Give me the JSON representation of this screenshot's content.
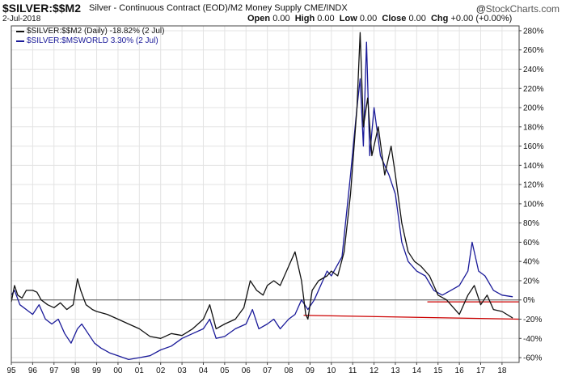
{
  "header": {
    "title": "$SILVER:$$M2",
    "subtitle": "Silver - Continuous Contract (EOD)/M2 Money Supply CME/INDX",
    "date": "2-Jul-2018",
    "open_label": "Open",
    "open_value": "0.00",
    "high_label": "High",
    "high_value": "0.00",
    "low_label": "Low",
    "low_value": "0.00",
    "close_label": "Close",
    "close_value": "0.00",
    "chg_label": "Chg",
    "chg_value": "+0.00 (+0.00%)",
    "brand": "StockCharts.com",
    "brand_mark": "@"
  },
  "chart_data": {
    "type": "line",
    "xlim": [
      1995.0,
      2018.8
    ],
    "ylim": [
      -65,
      285
    ],
    "yticks": [
      -60,
      -40,
      -20,
      0,
      20,
      40,
      60,
      80,
      100,
      120,
      140,
      160,
      180,
      200,
      220,
      240,
      260,
      280
    ],
    "ytick_labels": [
      "-60%",
      "-40%",
      "-20%",
      "0%",
      "20%",
      "40%",
      "60%",
      "80%",
      "100%",
      "120%",
      "140%",
      "160%",
      "180%",
      "200%",
      "220%",
      "240%",
      "260%",
      "280%"
    ],
    "xticks": [
      1995,
      1996,
      1997,
      1998,
      1999,
      2000,
      2001,
      2002,
      2003,
      2004,
      2005,
      2006,
      2007,
      2008,
      2009,
      2010,
      2011,
      2012,
      2013,
      2014,
      2015,
      2016,
      2017,
      2018
    ],
    "xtick_labels": [
      "95",
      "96",
      "97",
      "98",
      "99",
      "00",
      "01",
      "02",
      "03",
      "04",
      "05",
      "06",
      "07",
      "08",
      "09",
      "10",
      "11",
      "12",
      "13",
      "14",
      "15",
      "16",
      "17",
      "18"
    ],
    "grid": true,
    "series": [
      {
        "name": "$SILVER:$$M2 (Daily) -18.82% (2 Jul)",
        "color": "#111111",
        "points": [
          [
            1995.0,
            -2
          ],
          [
            1995.15,
            15
          ],
          [
            1995.3,
            5
          ],
          [
            1995.5,
            2
          ],
          [
            1995.7,
            10
          ],
          [
            1996.0,
            10
          ],
          [
            1996.2,
            8
          ],
          [
            1996.4,
            0
          ],
          [
            1996.7,
            -5
          ],
          [
            1997.0,
            -8
          ],
          [
            1997.3,
            -3
          ],
          [
            1997.6,
            -10
          ],
          [
            1997.9,
            -5
          ],
          [
            1998.1,
            22
          ],
          [
            1998.25,
            10
          ],
          [
            1998.5,
            -5
          ],
          [
            1998.8,
            -10
          ],
          [
            1999.0,
            -12
          ],
          [
            1999.5,
            -15
          ],
          [
            2000.0,
            -20
          ],
          [
            2000.5,
            -25
          ],
          [
            2001.0,
            -30
          ],
          [
            2001.5,
            -38
          ],
          [
            2002.0,
            -40
          ],
          [
            2002.5,
            -35
          ],
          [
            2003.0,
            -37
          ],
          [
            2003.5,
            -30
          ],
          [
            2004.0,
            -20
          ],
          [
            2004.3,
            -5
          ],
          [
            2004.6,
            -30
          ],
          [
            2005.0,
            -25
          ],
          [
            2005.5,
            -20
          ],
          [
            2005.9,
            -8
          ],
          [
            2006.2,
            20
          ],
          [
            2006.5,
            10
          ],
          [
            2006.8,
            5
          ],
          [
            2007.0,
            15
          ],
          [
            2007.3,
            20
          ],
          [
            2007.6,
            15
          ],
          [
            2008.0,
            35
          ],
          [
            2008.3,
            50
          ],
          [
            2008.6,
            20
          ],
          [
            2008.8,
            -15
          ],
          [
            2008.9,
            -20
          ],
          [
            2009.1,
            10
          ],
          [
            2009.4,
            20
          ],
          [
            2009.8,
            25
          ],
          [
            2010.0,
            30
          ],
          [
            2010.3,
            25
          ],
          [
            2010.6,
            50
          ],
          [
            2010.9,
            110
          ],
          [
            2011.2,
            200
          ],
          [
            2011.35,
            278
          ],
          [
            2011.5,
            180
          ],
          [
            2011.7,
            210
          ],
          [
            2011.9,
            150
          ],
          [
            2012.2,
            180
          ],
          [
            2012.5,
            130
          ],
          [
            2012.8,
            160
          ],
          [
            2013.0,
            130
          ],
          [
            2013.3,
            80
          ],
          [
            2013.6,
            50
          ],
          [
            2013.9,
            40
          ],
          [
            2014.2,
            35
          ],
          [
            2014.6,
            25
          ],
          [
            2015.0,
            5
          ],
          [
            2015.4,
            0
          ],
          [
            2015.8,
            -10
          ],
          [
            2016.0,
            -15
          ],
          [
            2016.4,
            5
          ],
          [
            2016.7,
            15
          ],
          [
            2017.0,
            -5
          ],
          [
            2017.3,
            5
          ],
          [
            2017.6,
            -10
          ],
          [
            2018.0,
            -12
          ],
          [
            2018.5,
            -18.82
          ]
        ]
      },
      {
        "name": "$SILVER:$MSWORLD 3.30% (2 Jul)",
        "color": "#1a1a99",
        "points": [
          [
            1995.0,
            5
          ],
          [
            1995.15,
            10
          ],
          [
            1995.4,
            -5
          ],
          [
            1995.7,
            -10
          ],
          [
            1996.0,
            -15
          ],
          [
            1996.3,
            -5
          ],
          [
            1996.6,
            -20
          ],
          [
            1996.9,
            -25
          ],
          [
            1997.2,
            -20
          ],
          [
            1997.5,
            -35
          ],
          [
            1997.8,
            -45
          ],
          [
            1998.1,
            -30
          ],
          [
            1998.3,
            -25
          ],
          [
            1998.6,
            -35
          ],
          [
            1998.9,
            -45
          ],
          [
            1999.2,
            -50
          ],
          [
            1999.6,
            -55
          ],
          [
            2000.0,
            -58
          ],
          [
            2000.5,
            -62
          ],
          [
            2001.0,
            -60
          ],
          [
            2001.5,
            -58
          ],
          [
            2002.0,
            -52
          ],
          [
            2002.5,
            -48
          ],
          [
            2003.0,
            -40
          ],
          [
            2003.5,
            -35
          ],
          [
            2004.0,
            -30
          ],
          [
            2004.3,
            -20
          ],
          [
            2004.6,
            -40
          ],
          [
            2005.0,
            -38
          ],
          [
            2005.5,
            -30
          ],
          [
            2006.0,
            -25
          ],
          [
            2006.3,
            -10
          ],
          [
            2006.6,
            -30
          ],
          [
            2007.0,
            -25
          ],
          [
            2007.3,
            -20
          ],
          [
            2007.6,
            -30
          ],
          [
            2008.0,
            -20
          ],
          [
            2008.3,
            -15
          ],
          [
            2008.6,
            0
          ],
          [
            2008.9,
            -10
          ],
          [
            2009.2,
            0
          ],
          [
            2009.5,
            15
          ],
          [
            2009.8,
            30
          ],
          [
            2010.0,
            25
          ],
          [
            2010.5,
            45
          ],
          [
            2010.9,
            130
          ],
          [
            2011.2,
            200
          ],
          [
            2011.35,
            230
          ],
          [
            2011.5,
            160
          ],
          [
            2011.65,
            268
          ],
          [
            2011.8,
            150
          ],
          [
            2012.0,
            200
          ],
          [
            2012.3,
            150
          ],
          [
            2012.7,
            130
          ],
          [
            2013.0,
            110
          ],
          [
            2013.3,
            60
          ],
          [
            2013.6,
            40
          ],
          [
            2014.0,
            30
          ],
          [
            2014.4,
            25
          ],
          [
            2014.8,
            10
          ],
          [
            2015.2,
            5
          ],
          [
            2015.6,
            10
          ],
          [
            2016.0,
            15
          ],
          [
            2016.4,
            30
          ],
          [
            2016.6,
            60
          ],
          [
            2016.9,
            30
          ],
          [
            2017.2,
            25
          ],
          [
            2017.6,
            10
          ],
          [
            2018.0,
            5
          ],
          [
            2018.5,
            3.3
          ]
        ]
      }
    ],
    "reference_lines": [
      {
        "kind": "horizontal",
        "y": 0,
        "color": "#555555"
      },
      {
        "kind": "segment",
        "x1": 2008.7,
        "y1": -16,
        "x2": 2018.8,
        "y2": -20,
        "color": "#cc0000"
      },
      {
        "kind": "segment",
        "x1": 2014.5,
        "y1": -2,
        "x2": 2018.8,
        "y2": -2,
        "color": "#cc0000"
      }
    ]
  },
  "colors": {
    "grid": "#e3e3e3",
    "axis": "#444444"
  }
}
